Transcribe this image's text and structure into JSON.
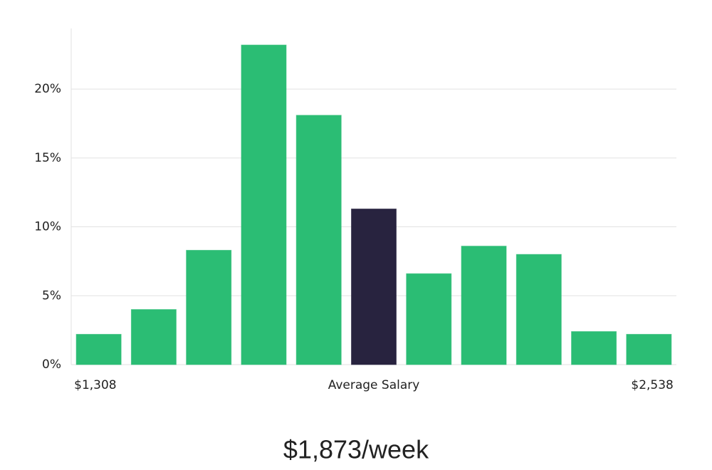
{
  "chart_data": {
    "type": "bar",
    "categories": [
      "$1,308",
      null,
      null,
      null,
      null,
      "Average Salary",
      null,
      null,
      null,
      null,
      "$2,538"
    ],
    "values": [
      2.2,
      4.0,
      8.3,
      23.2,
      18.1,
      11.3,
      6.6,
      8.6,
      8.0,
      2.4,
      2.2
    ],
    "colors": [
      "#2bbd74",
      "#2bbd74",
      "#2bbd74",
      "#2bbd74",
      "#2bbd74",
      "#28233f",
      "#2bbd74",
      "#2bbd74",
      "#2bbd74",
      "#2bbd74",
      "#2bbd74"
    ],
    "ylim": [
      0,
      24.4
    ],
    "yticks": [
      {
        "value": 0,
        "label": "0%"
      },
      {
        "value": 5,
        "label": "5%"
      },
      {
        "value": 10,
        "label": "10%"
      },
      {
        "value": 15,
        "label": "15%"
      },
      {
        "value": 20,
        "label": "20%"
      }
    ],
    "grid": true,
    "summary": "$1,873/week"
  }
}
